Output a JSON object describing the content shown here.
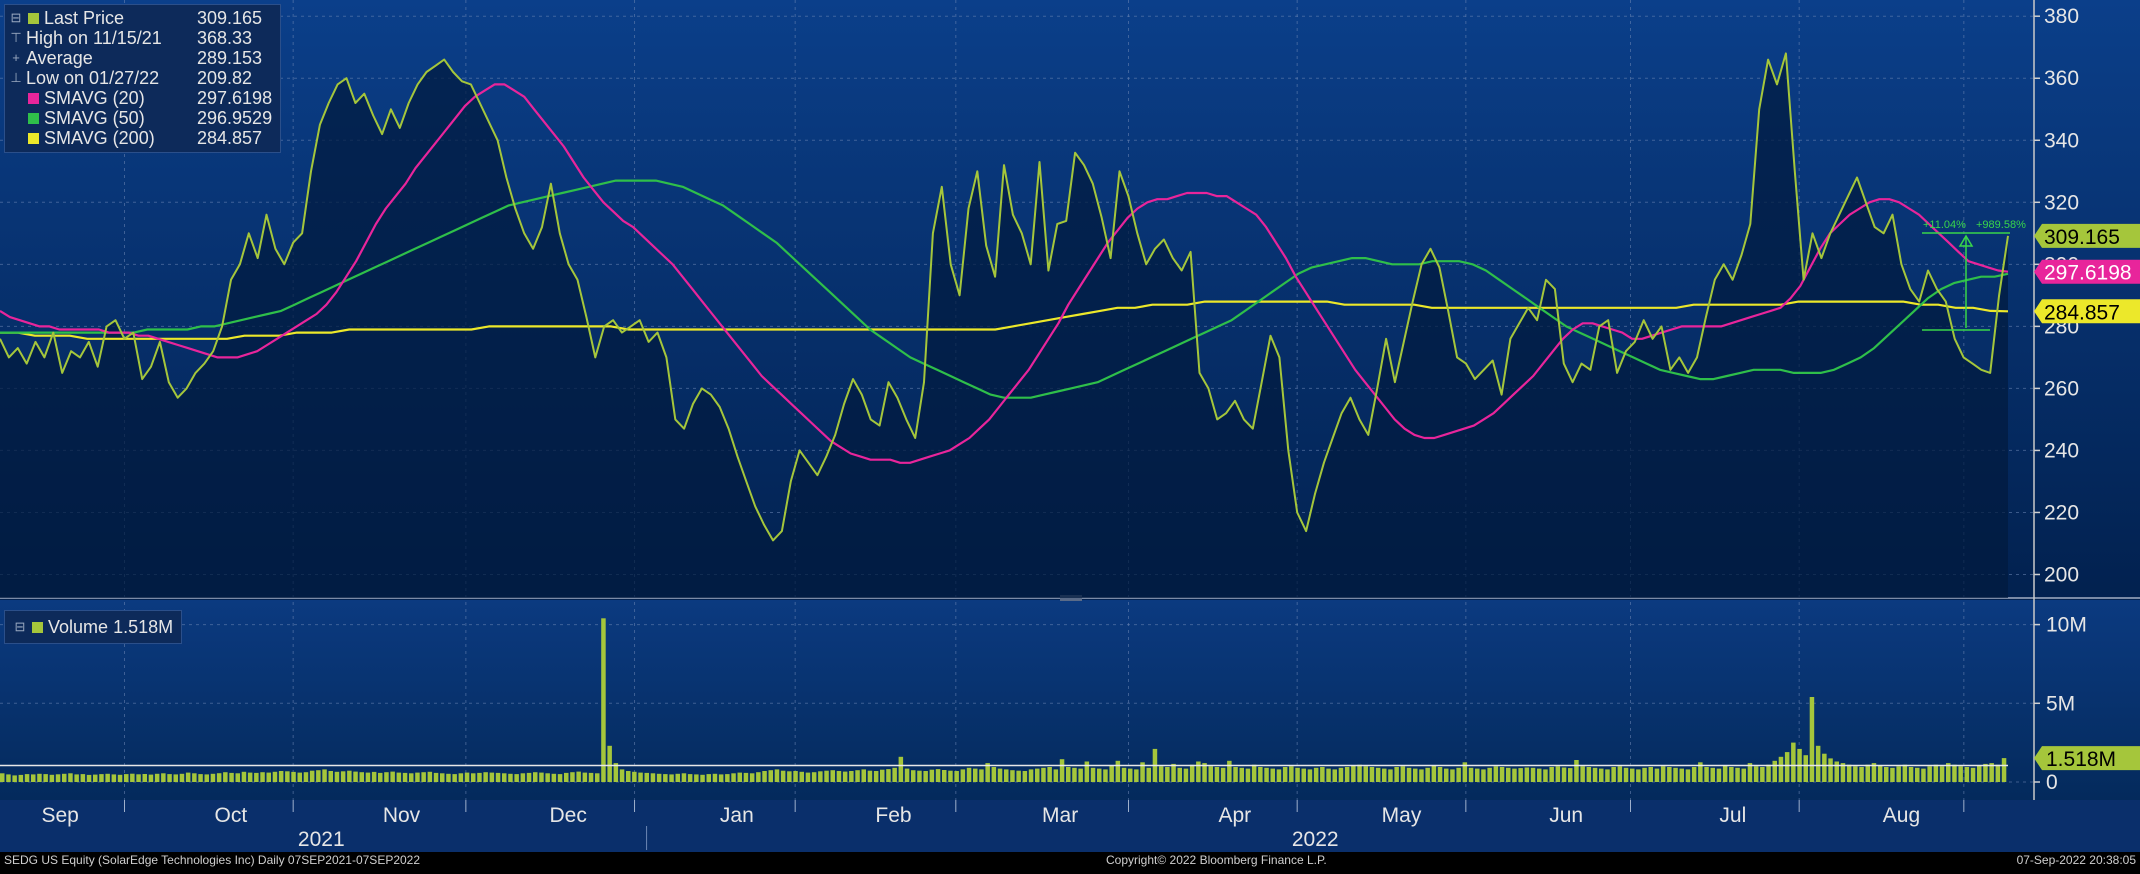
{
  "colors": {
    "price": "#a5c63b",
    "sma20": "#e8259b",
    "sma50": "#2fbf4a",
    "sma200": "#ece82a",
    "bg_top": "#0a3a80",
    "bg_bottom": "#021a40"
  },
  "legend": {
    "items": [
      {
        "label": "Last Price",
        "value": "309.165",
        "symbol": "square",
        "color": "#a5c63b"
      },
      {
        "label": "High on 11/15/21",
        "value": "368.33",
        "symbol": "⊤"
      },
      {
        "label": "Average",
        "value": "289.153",
        "symbol": "+"
      },
      {
        "label": "Low on 01/27/22",
        "value": "209.82",
        "symbol": "⊥"
      },
      {
        "label": "SMAVG (20)",
        "value": "297.6198",
        "symbol": "square",
        "color": "#e8259b"
      },
      {
        "label": "SMAVG (50)",
        "value": "296.9529",
        "symbol": "square",
        "color": "#2fbf4a"
      },
      {
        "label": "SMAVG (200)",
        "value": "284.857",
        "symbol": "square",
        "color": "#ece82a"
      }
    ]
  },
  "volume_legend": {
    "label": "Volume",
    "value": "1.518M",
    "color": "#a5c63b"
  },
  "annotation": {
    "pct": "+11.04%",
    "days": "+989.58%"
  },
  "footer": {
    "left": "SEDG US Equity (SolarEdge Technologies Inc)  Daily 07SEP2021-07SEP2022",
    "center": "Copyright© 2022 Bloomberg Finance L.P.",
    "right": "07-Sep-2022 20:38:05"
  },
  "chart_data": [
    {
      "type": "line",
      "ylim": [
        195,
        382
      ],
      "y_ticks": [
        200,
        220,
        240,
        260,
        280,
        300,
        320,
        340,
        360,
        380
      ],
      "x_month_labels": [
        "Sep",
        "Oct",
        "Nov",
        "Dec",
        "Jan",
        "Feb",
        "Mar",
        "Apr",
        "May",
        "Jun",
        "Jul",
        "Aug"
      ],
      "x_year_labels": [
        "2021",
        "2022"
      ],
      "grid": true,
      "price_tags": [
        {
          "value": 309.165,
          "label": "309.165",
          "color": "#a5c63b"
        },
        {
          "value": 297.6198,
          "label": "297.6198",
          "color": "#e8259b"
        },
        {
          "value": 284.857,
          "label": "284.857",
          "color": "#ece82a"
        }
      ],
      "series": [
        {
          "name": "Last Price",
          "color": "#a5c63b",
          "values": [
            276,
            270,
            273,
            268,
            275,
            270,
            278,
            265,
            272,
            270,
            275,
            267,
            280,
            282,
            276,
            278,
            263,
            267,
            275,
            262,
            257,
            260,
            265,
            268,
            272,
            280,
            295,
            300,
            310,
            302,
            316,
            305,
            300,
            307,
            310,
            330,
            345,
            352,
            358,
            360,
            352,
            355,
            348,
            342,
            350,
            344,
            352,
            358,
            362,
            364,
            366,
            362,
            359,
            358,
            352,
            346,
            340,
            328,
            318,
            310,
            305,
            312,
            326,
            310,
            300,
            295,
            283,
            270,
            280,
            282,
            278,
            280,
            282,
            275,
            278,
            270,
            250,
            247,
            255,
            260,
            258,
            254,
            247,
            238,
            230,
            222,
            216,
            211,
            214,
            230,
            240,
            236,
            232,
            238,
            245,
            255,
            263,
            258,
            250,
            248,
            262,
            257,
            250,
            244,
            262,
            310,
            325,
            300,
            290,
            318,
            330,
            306,
            296,
            332,
            316,
            310,
            300,
            333,
            298,
            313,
            314,
            336,
            332,
            326,
            315,
            302,
            330,
            322,
            310,
            300,
            305,
            308,
            302,
            298,
            304,
            265,
            260,
            250,
            252,
            256,
            250,
            247,
            262,
            277,
            270,
            240,
            220,
            214,
            226,
            236,
            244,
            252,
            257,
            250,
            245,
            260,
            276,
            262,
            275,
            288,
            300,
            305,
            299,
            285,
            270,
            268,
            263,
            266,
            269,
            258,
            276,
            281,
            286,
            282,
            295,
            292,
            268,
            262,
            268,
            266,
            280,
            282,
            265,
            272,
            275,
            282,
            276,
            280,
            266,
            270,
            265,
            270,
            283,
            295,
            300,
            295,
            303,
            313,
            350,
            366,
            358,
            368,
            330,
            295,
            310,
            302,
            310,
            316,
            322,
            328,
            320,
            312,
            310,
            316,
            300,
            292,
            288,
            298,
            292,
            288,
            276,
            270,
            268,
            266,
            265,
            290,
            309.165
          ]
        },
        {
          "name": "SMAVG (20)",
          "color": "#e8259b",
          "values": [
            285,
            283,
            282,
            281,
            280,
            280,
            279,
            279,
            279,
            279,
            279,
            278,
            278,
            278,
            277,
            277,
            276,
            275,
            274,
            273,
            272,
            271,
            270,
            270,
            270,
            271,
            272,
            274,
            276,
            278,
            280,
            282,
            284,
            287,
            291,
            296,
            301,
            307,
            313,
            318,
            322,
            326,
            331,
            335,
            339,
            343,
            347,
            351,
            354,
            356,
            358,
            358,
            356,
            354,
            350,
            346,
            342,
            338,
            333,
            328,
            324,
            320,
            317,
            314,
            312,
            309,
            306,
            303,
            300,
            296,
            292,
            288,
            284,
            280,
            276,
            272,
            268,
            264,
            261,
            258,
            255,
            252,
            249,
            246,
            243,
            241,
            239,
            238,
            237,
            237,
            237,
            236,
            236,
            237,
            238,
            239,
            240,
            242,
            244,
            247,
            250,
            254,
            258,
            262,
            266,
            271,
            276,
            281,
            287,
            292,
            297,
            302,
            307,
            311,
            315,
            318,
            320,
            321,
            321,
            322,
            323,
            323,
            323,
            322,
            322,
            320,
            318,
            316,
            312,
            307,
            302,
            296,
            291,
            286,
            281,
            276,
            271,
            266,
            262,
            258,
            254,
            250,
            247,
            245,
            244,
            244,
            245,
            246,
            247,
            248,
            250,
            252,
            255,
            258,
            261,
            264,
            268,
            272,
            276,
            279,
            281,
            281,
            280,
            279,
            278,
            276,
            276,
            277,
            278,
            279,
            280,
            280,
            280,
            280,
            280,
            281,
            282,
            283,
            284,
            285,
            286,
            289,
            293,
            299,
            305,
            310,
            313,
            316,
            318,
            320,
            321,
            321,
            320,
            318,
            316,
            313,
            310,
            307,
            304,
            301,
            300,
            299,
            298,
            297.6198
          ]
        },
        {
          "name": "SMAVG (50)",
          "color": "#2fbf4a",
          "values": [
            278,
            278,
            278,
            278,
            278,
            278,
            278,
            278,
            278,
            278,
            278,
            279,
            279,
            279,
            279,
            280,
            280,
            281,
            282,
            283,
            284,
            285,
            287,
            289,
            291,
            293,
            295,
            297,
            299,
            301,
            303,
            305,
            307,
            309,
            311,
            313,
            315,
            317,
            319,
            320,
            321,
            322,
            323,
            324,
            325,
            326,
            327,
            327,
            327,
            327,
            326,
            325,
            323,
            321,
            319,
            316,
            313,
            310,
            307,
            303,
            299,
            295,
            291,
            287,
            283,
            279,
            276,
            273,
            270,
            268,
            266,
            264,
            262,
            260,
            258,
            257,
            257,
            257,
            258,
            259,
            260,
            261,
            262,
            264,
            266,
            268,
            270,
            272,
            274,
            276,
            278,
            280,
            282,
            285,
            288,
            291,
            294,
            297,
            299,
            300,
            301,
            302,
            302,
            301,
            300,
            300,
            300,
            301,
            301,
            301,
            300,
            298,
            295,
            292,
            289,
            286,
            283,
            280,
            278,
            276,
            274,
            272,
            270,
            268,
            266,
            265,
            264,
            263,
            263,
            264,
            265,
            266,
            266,
            266,
            265,
            265,
            265,
            266,
            268,
            270,
            273,
            277,
            281,
            285,
            289,
            292,
            294,
            295,
            296,
            296,
            296.9529
          ]
        },
        {
          "name": "SMAVG (200)",
          "color": "#ece82a",
          "values": [
            278,
            278,
            277,
            277,
            277,
            276,
            276,
            276,
            276,
            276,
            276,
            276,
            276,
            276,
            277,
            277,
            277,
            278,
            278,
            278,
            279,
            279,
            279,
            279,
            279,
            279,
            279,
            279,
            280,
            280,
            280,
            280,
            280,
            280,
            280,
            280,
            279,
            279,
            279,
            279,
            279,
            279,
            279,
            279,
            279,
            279,
            279,
            279,
            279,
            279,
            279,
            279,
            279,
            279,
            279,
            279,
            279,
            279,
            280,
            281,
            282,
            283,
            284,
            285,
            286,
            286,
            287,
            287,
            287,
            288,
            288,
            288,
            288,
            288,
            288,
            288,
            288,
            287,
            287,
            287,
            287,
            287,
            286,
            286,
            286,
            286,
            286,
            286,
            286,
            286,
            286,
            286,
            286,
            286,
            286,
            286,
            286,
            287,
            287,
            287,
            287,
            287,
            287,
            288,
            288,
            288,
            288,
            288,
            288,
            288,
            287,
            287,
            286,
            286,
            285,
            284.857
          ]
        }
      ]
    },
    {
      "type": "bar",
      "title": "Volume",
      "ylim": [
        0,
        10.8
      ],
      "y_ticks": [
        0,
        5,
        10
      ],
      "y_tick_labels": [
        "0",
        "5M",
        "10M"
      ],
      "unit": "M",
      "last_value": 1.518,
      "last_label": "1.518M",
      "values": [
        0.55,
        0.48,
        0.42,
        0.45,
        0.5,
        0.48,
        0.52,
        0.5,
        0.46,
        0.49,
        0.52,
        0.55,
        0.48,
        0.5,
        0.45,
        0.47,
        0.5,
        0.52,
        0.48,
        0.46,
        0.5,
        0.53,
        0.49,
        0.51,
        0.47,
        0.52,
        0.55,
        0.5,
        0.48,
        0.52,
        0.6,
        0.55,
        0.5,
        0.48,
        0.52,
        0.56,
        0.62,
        0.58,
        0.55,
        0.65,
        0.6,
        0.58,
        0.62,
        0.6,
        0.65,
        0.7,
        0.68,
        0.64,
        0.6,
        0.62,
        0.72,
        0.75,
        0.8,
        0.7,
        0.65,
        0.68,
        0.72,
        0.66,
        0.62,
        0.6,
        0.64,
        0.58,
        0.62,
        0.66,
        0.6,
        0.58,
        0.55,
        0.6,
        0.62,
        0.65,
        0.58,
        0.55,
        0.52,
        0.5,
        0.55,
        0.6,
        0.55,
        0.58,
        0.62,
        0.6,
        0.58,
        0.55,
        0.52,
        0.5,
        0.55,
        0.58,
        0.62,
        0.6,
        0.55,
        0.52,
        0.5,
        0.58,
        0.62,
        0.66,
        0.6,
        0.58,
        0.55,
        10.4,
        2.3,
        1.2,
        0.8,
        0.7,
        0.65,
        0.6,
        0.58,
        0.55,
        0.52,
        0.5,
        0.48,
        0.52,
        0.55,
        0.5,
        0.48,
        0.46,
        0.5,
        0.52,
        0.48,
        0.5,
        0.55,
        0.6,
        0.58,
        0.55,
        0.62,
        0.7,
        0.75,
        0.8,
        0.72,
        0.68,
        0.7,
        0.65,
        0.6,
        0.62,
        0.68,
        0.72,
        0.75,
        0.7,
        0.66,
        0.7,
        0.75,
        0.8,
        0.72,
        0.7,
        0.78,
        0.82,
        0.9,
        1.6,
        0.85,
        0.75,
        0.72,
        0.7,
        0.78,
        0.82,
        0.76,
        0.72,
        0.7,
        0.8,
        0.9,
        0.85,
        0.8,
        1.2,
        0.95,
        0.85,
        0.8,
        0.75,
        0.72,
        0.7,
        0.8,
        0.85,
        0.9,
        0.95,
        0.8,
        1.45,
        0.95,
        0.9,
        0.85,
        1.3,
        0.9,
        0.85,
        0.8,
        1.05,
        1.35,
        0.9,
        0.85,
        0.8,
        1.25,
        0.9,
        2.1,
        1.0,
        0.95,
        1.15,
        0.9,
        0.85,
        1.1,
        1.3,
        1.2,
        1.0,
        0.95,
        0.9,
        1.35,
        0.95,
        0.9,
        0.85,
        1.1,
        0.95,
        0.9,
        0.85,
        0.8,
        0.95,
        1.0,
        0.9,
        0.85,
        0.8,
        0.9,
        0.95,
        0.85,
        0.8,
        0.9,
        0.95,
        1.05,
        1.1,
        1.0,
        0.95,
        0.9,
        0.85,
        0.8,
        0.95,
        1.0,
        0.9,
        0.85,
        0.8,
        0.9,
        1.05,
        0.95,
        0.85,
        0.8,
        0.9,
        1.25,
        0.9,
        0.85,
        0.8,
        0.9,
        1.0,
        0.95,
        0.9,
        0.85,
        0.88,
        0.92,
        0.9,
        0.85,
        0.8,
        0.95,
        1.0,
        0.92,
        0.88,
        1.4,
        1.0,
        0.95,
        0.9,
        0.85,
        0.8,
        0.95,
        1.0,
        0.9,
        0.85,
        0.8,
        0.9,
        0.95,
        0.85,
        1.0,
        0.95,
        0.9,
        0.85,
        0.8,
        0.95,
        1.25,
        0.95,
        0.9,
        0.85,
        1.05,
        0.95,
        0.9,
        0.85,
        1.2,
        1.0,
        0.95,
        1.1,
        1.35,
        1.6,
        1.9,
        2.5,
        2.1,
        1.7,
        5.4,
        2.3,
        1.8,
        1.5,
        1.3,
        1.2,
        1.1,
        1.0,
        0.95,
        1.1,
        1.2,
        1.05,
        0.95,
        0.9,
        1.0,
        1.1,
        0.95,
        0.9,
        0.85,
        1.0,
        1.1,
        1.0,
        1.2,
        1.1,
        1.0,
        0.95,
        0.9,
        1.05,
        1.15,
        1.2,
        1.1,
        1.518
      ]
    }
  ]
}
